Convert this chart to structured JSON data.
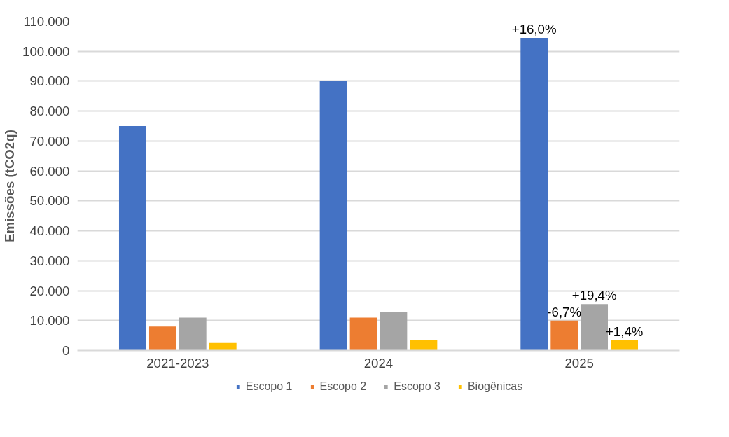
{
  "chart_data": {
    "type": "bar",
    "ylabel": "Emissões (tCO2q)",
    "categories": [
      "2021-2023",
      "2024",
      "2025"
    ],
    "series": [
      {
        "name": "Escopo 1",
        "color": "#4472c4",
        "values": [
          75000,
          90000,
          104500
        ]
      },
      {
        "name": "Escopo 2",
        "color": "#ed7d31",
        "values": [
          8000,
          11000,
          10000
        ]
      },
      {
        "name": "Escopo 3",
        "color": "#a5a5a5",
        "values": [
          11000,
          13000,
          15500
        ]
      },
      {
        "name": "Biogênicas",
        "color": "#ffc000",
        "values": [
          2500,
          3500,
          3500
        ]
      }
    ],
    "annotations": [
      "+16,0%",
      "-6,7%",
      "+19,4%",
      "+1,4%"
    ],
    "ylim": [
      0,
      110000
    ],
    "yticks": [
      {
        "value": 0,
        "label": "0"
      },
      {
        "value": 10000,
        "label": "10.000"
      },
      {
        "value": 20000,
        "label": "20.000"
      },
      {
        "value": 30000,
        "label": "30.000"
      },
      {
        "value": 40000,
        "label": "40.000"
      },
      {
        "value": 50000,
        "label": "50.000"
      },
      {
        "value": 60000,
        "label": "60.000"
      },
      {
        "value": 70000,
        "label": "70.000"
      },
      {
        "value": 80000,
        "label": "80.000"
      },
      {
        "value": 90000,
        "label": "90.000"
      },
      {
        "value": 100000,
        "label": "100.000"
      },
      {
        "value": 110000,
        "label": "110.000"
      }
    ],
    "grid": "y",
    "legend": "bottom"
  }
}
